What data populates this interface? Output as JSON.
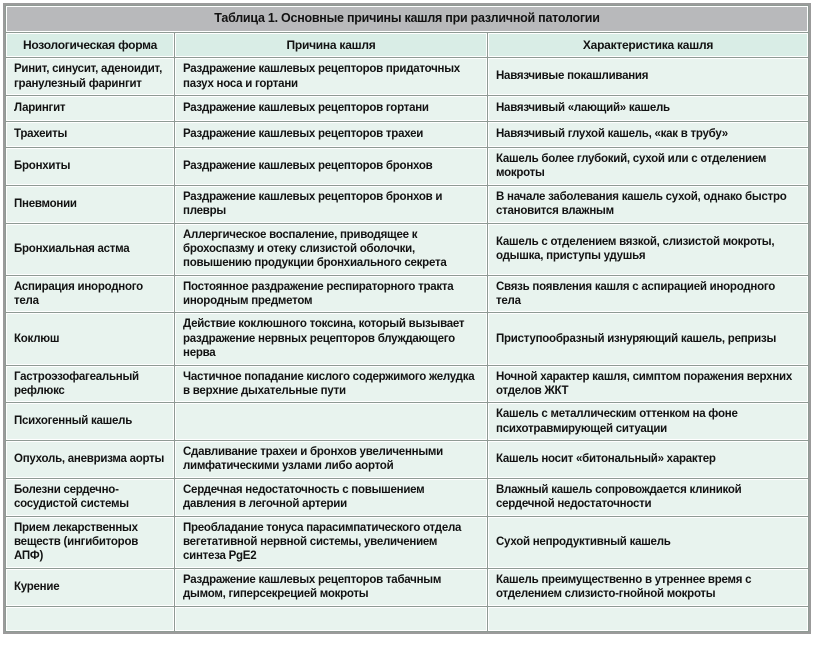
{
  "table": {
    "title": "Таблица 1. Основные причины кашля при различной патологии",
    "columns": [
      "Нозологическая форма",
      "Причина кашля",
      "Характеристика кашля"
    ],
    "rows": [
      [
        "Ринит, синусит, аденоидит, гранулезный фарингит",
        "Раздражение кашлевых рецепторов придаточных пазух носа и гортани",
        "Навязчивые покашливания"
      ],
      [
        "Ларингит",
        "Раздражение кашлевых рецепторов гортани",
        "Навязчивый «лающий» кашель"
      ],
      [
        "Трахеиты",
        "Раздражение кашлевых рецепторов трахеи",
        "Навязчивый глухой кашель, «как в трубу»"
      ],
      [
        "Бронхиты",
        "Раздражение кашлевых рецепторов бронхов",
        "Кашель более глубокий, сухой или с отделением мокроты"
      ],
      [
        "Пневмонии",
        "Раздражение кашлевых рецепторов бронхов и плевры",
        "В начале заболевания кашель сухой, однако быстро становится влажным"
      ],
      [
        "Бронхиальная астма",
        "Аллергическое воспаление, приводящее к брохоспазму и отеку слизистой оболочки, повышению продукции бронхиального секрета",
        "Кашель с отделением вязкой, слизистой мокроты, одышка, приступы удушья"
      ],
      [
        "Аспирация инородного тела",
        "Постоянное раздражение респираторного тракта инородным предметом",
        "Связь появления кашля с аспирацией инородного тела"
      ],
      [
        "Коклюш",
        "Действие коклюшного токсина, который вызывает раздражение нервных рецепторов блуждающего нерва",
        "Приступообразный изнуряющий кашель, репризы"
      ],
      [
        "Гастроэзофагеальный рефлюкс",
        "Частичное попадание кислого содержимого желудка в верхние дыхательные пути",
        "Ночной характер кашля, симптом поражения верхних отделов ЖКТ"
      ],
      [
        "Психогенный кашель",
        "",
        "Кашель с металлическим оттенком на фоне психотравмирующей ситуации"
      ],
      [
        "Опухоль, аневризма аорты",
        "Сдавливание трахеи и бронхов увеличенными лимфатическими узлами либо аортой",
        "Кашель носит «битональный» характер"
      ],
      [
        "Болезни сердечно-сосудистой системы",
        "Сердечная недостаточность с повышением давления в легочной артерии",
        "Влажный кашель сопровождается клиникой сердечной недостаточности"
      ],
      [
        "Прием лекарственных веществ (ингибиторов АПФ)",
        "Преобладание тонуса парасимпатического отдела вегетативной нервной системы, увеличением синтеза PgE2",
        "Сухой непродуктивный кашель"
      ],
      [
        "Курение",
        "Раздражение кашлевых рецепторов табачным дымом, гиперсекрецией мокроты",
        "Кашель преимущественно в утреннее время с отделением слизисто-гнойной мокроты"
      ]
    ],
    "colors": {
      "title_bg": "#b8b9bb",
      "header_bg": "#d9ede6",
      "cell_bg": "#e8f3ee",
      "grid_line": "#8f9a94",
      "outer_border": "#9b9b9b",
      "text": "#121212"
    }
  }
}
